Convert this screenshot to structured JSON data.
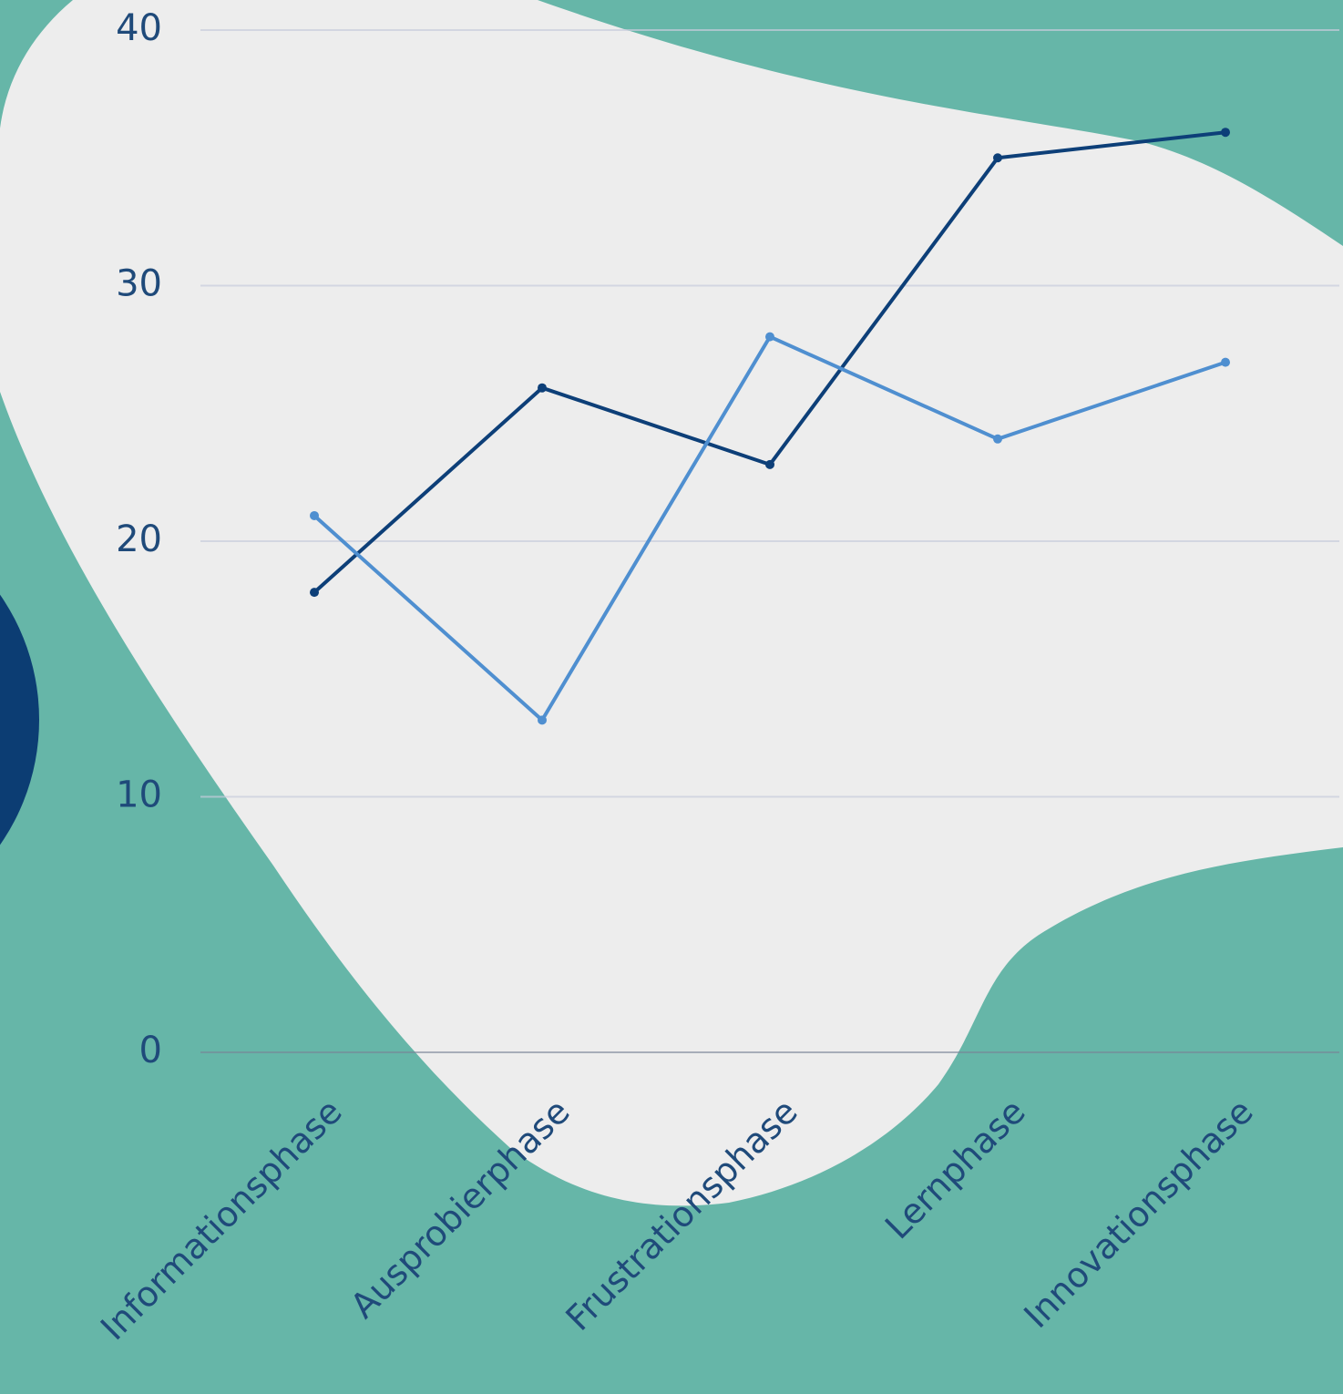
{
  "chart_data": {
    "type": "line",
    "categories": [
      "Informationsphase",
      "Ausprobierphase",
      "Frustrationsphase",
      "Lernphase",
      "Innovationsphase"
    ],
    "series": [
      {
        "color": "#0d3f78",
        "values": [
          18,
          26,
          23,
          35,
          36
        ]
      },
      {
        "color": "#4f8fd0",
        "values": [
          21,
          13,
          28,
          24,
          27
        ]
      }
    ],
    "ylim": [
      0,
      40
    ],
    "yticks": [
      0,
      10,
      20,
      30,
      40
    ],
    "grid": true
  }
}
